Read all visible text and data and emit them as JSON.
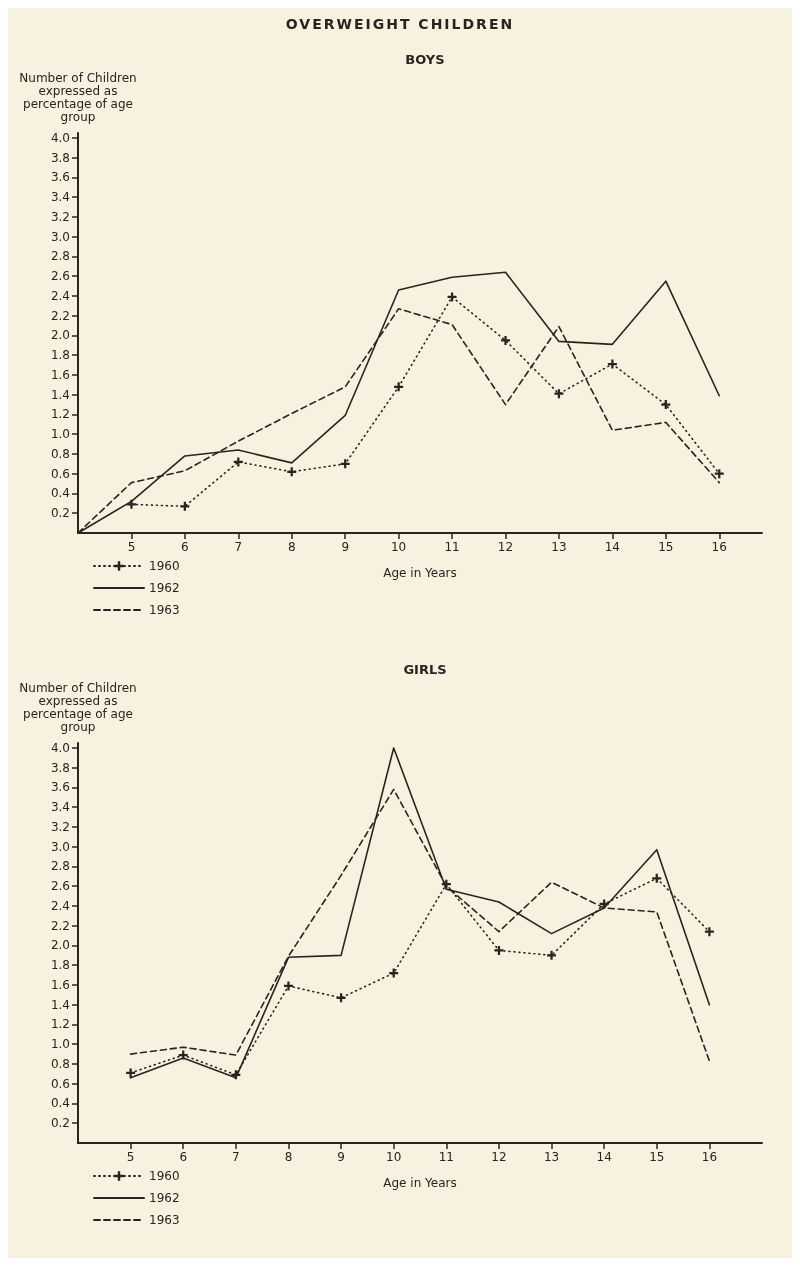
{
  "chart_data": [
    {
      "type": "line",
      "title": "BOYS",
      "annotations": [
        "OVERWEIGHT CHILDREN"
      ],
      "xlabel": "Age in Years",
      "ylabel": "Number of Children expressed as percentage of age group",
      "xlim": [
        4,
        16.8
      ],
      "xticks": [
        5,
        6,
        7,
        8,
        9,
        10,
        11,
        12,
        13,
        14,
        15,
        16
      ],
      "ylim": [
        0,
        4.05
      ],
      "yticks": [
        0.2,
        0.4,
        0.6,
        0.8,
        {
          "value": 1,
          "label": "1.0"
        },
        1.2,
        1.4,
        1.6,
        1.8,
        {
          "value": 2,
          "label": "2.0"
        },
        2.2,
        2.4,
        2.6,
        2.8,
        {
          "value": 3,
          "label": "3.0"
        },
        3.2,
        3.4,
        3.6,
        3.8,
        {
          "value": 4,
          "label": "4.0"
        }
      ],
      "legend": "bottom left",
      "series": [
        {
          "name": "1960",
          "color": "#2a2420",
          "line_style": "dotted",
          "marker": "cross",
          "x": [
            5,
            6,
            7,
            8,
            9,
            10,
            11,
            12,
            13,
            14,
            15,
            16
          ],
          "values": [
            0.29,
            0.27,
            0.72,
            0.62,
            0.7,
            1.48,
            2.39,
            1.95,
            1.41,
            1.71,
            1.3,
            0.6
          ]
        },
        {
          "name": "1962",
          "color": "#2a2420",
          "line_style": "solid",
          "marker": "none",
          "x": [
            4,
            5,
            6,
            7,
            8,
            9,
            10,
            11,
            12,
            13,
            14,
            15,
            16
          ],
          "values": [
            0,
            0.32,
            0.78,
            0.84,
            0.71,
            1.19,
            2.46,
            2.59,
            2.64,
            1.94,
            1.91,
            2.55,
            1.39
          ]
        },
        {
          "name": "1963",
          "color": "#2a2420",
          "line_style": "dashed",
          "marker": "none",
          "x": [
            4,
            5,
            6,
            7,
            8,
            9,
            10,
            11,
            12,
            13,
            14,
            15,
            16
          ],
          "values": [
            0,
            0.51,
            0.63,
            0.93,
            1.21,
            1.48,
            2.27,
            2.11,
            1.3,
            2.09,
            1.04,
            1.12,
            0.51
          ]
        }
      ]
    },
    {
      "type": "line",
      "title": "GIRLS",
      "xlabel": "Age in Years",
      "ylabel": "Number of Children expressed as percentage of age group",
      "xlim": [
        4,
        17
      ],
      "xticks": [
        5,
        6,
        7,
        8,
        9,
        10,
        11,
        12,
        13,
        14,
        15,
        16
      ],
      "ylim": [
        0,
        4.05
      ],
      "yticks": [
        0.2,
        0.4,
        0.6,
        0.8,
        {
          "value": 1,
          "label": "1.0"
        },
        1.2,
        1.4,
        1.6,
        1.8,
        {
          "value": 2,
          "label": "2.0"
        },
        2.2,
        2.4,
        2.6,
        2.8,
        {
          "value": 3,
          "label": "3.0"
        },
        3.2,
        3.4,
        3.6,
        3.8,
        {
          "value": 4,
          "label": "4.0"
        }
      ],
      "legend": "bottom left",
      "series": [
        {
          "name": "1960",
          "color": "#2a2420",
          "line_style": "dotted",
          "marker": "cross",
          "x": [
            5,
            6,
            7,
            8,
            9,
            10,
            11,
            12,
            13,
            14,
            15,
            16
          ],
          "values": [
            0.71,
            0.89,
            0.69,
            1.59,
            1.47,
            1.72,
            2.62,
            1.95,
            1.9,
            2.42,
            2.68,
            2.14
          ]
        },
        {
          "name": "1962",
          "color": "#2a2420",
          "line_style": "solid",
          "marker": "none",
          "x": [
            5,
            6,
            7,
            8,
            9,
            10,
            11,
            12,
            13,
            14,
            15,
            16
          ],
          "values": [
            0.66,
            0.86,
            0.66,
            1.88,
            1.9,
            4.0,
            2.57,
            2.44,
            2.12,
            2.38,
            2.97,
            1.4
          ]
        },
        {
          "name": "1963",
          "color": "#2a2420",
          "line_style": "dashed",
          "marker": "none",
          "x": [
            5,
            6,
            7,
            8,
            9,
            10,
            11,
            12,
            13,
            14,
            15,
            16
          ],
          "values": [
            0.9,
            0.97,
            0.89,
            1.89,
            2.71,
            3.58,
            2.6,
            2.14,
            2.64,
            2.38,
            2.34,
            0.83
          ]
        }
      ]
    }
  ]
}
